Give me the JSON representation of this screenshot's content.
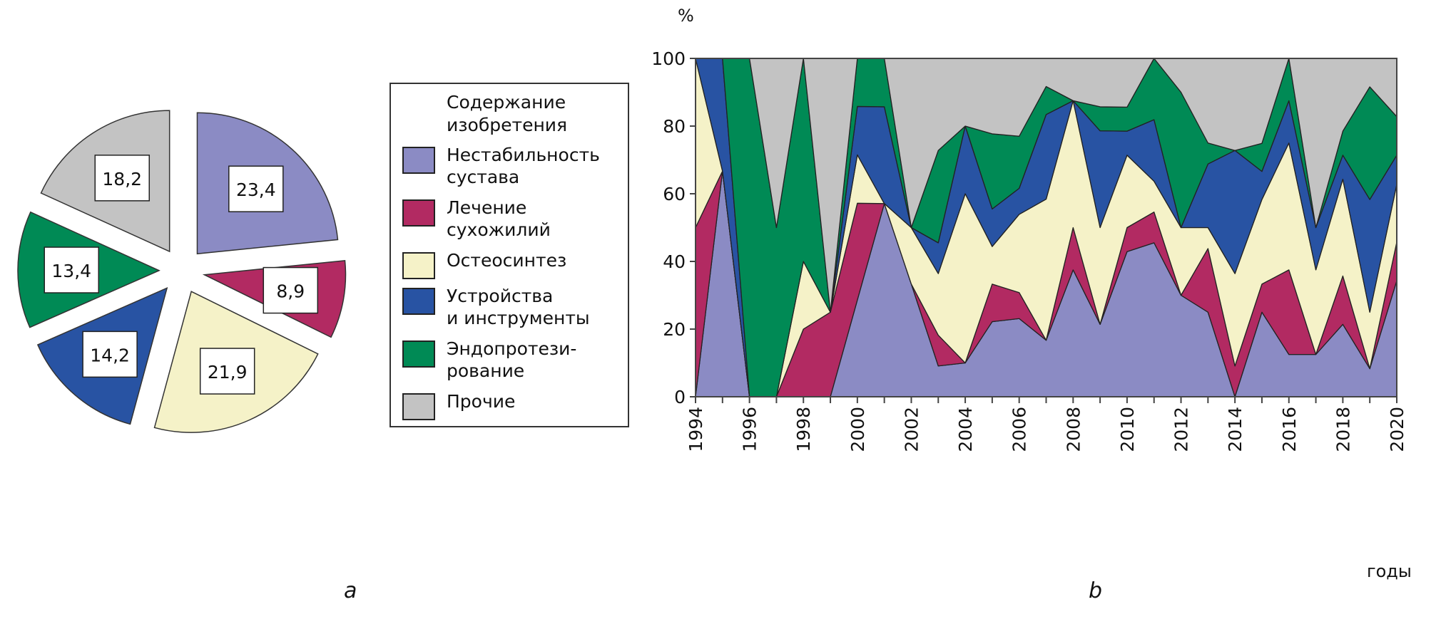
{
  "categories": [
    {
      "label": "Нестабильность\nсустава",
      "color": "#8b8bc4"
    },
    {
      "label": "Лечение\nсухожилий",
      "color": "#b22a62"
    },
    {
      "label": "Остеосинтез",
      "color": "#f5f2c8"
    },
    {
      "label": "Устройства\nи инструменты",
      "color": "#2853a3"
    },
    {
      "label": "Эндопротези-\nрование",
      "color": "#008a55"
    },
    {
      "label": "Прочие",
      "color": "#c3c3c3"
    }
  ],
  "legend_title": "Содержание\nизобретения",
  "panel_a_label": "a",
  "panel_b_label": "b",
  "chart_data": [
    {
      "type": "pie",
      "title": "",
      "labels": [
        "Нестабильность сустава",
        "Лечение сухожилий",
        "Остеосинтез",
        "Устройства и инструменты",
        "Эндопротезирование",
        "Прочие"
      ],
      "values": [
        23.4,
        8.9,
        21.9,
        14.2,
        13.4,
        18.2
      ],
      "value_labels": [
        "23,4",
        "8,9",
        "21,9",
        "14,2",
        "13,4",
        "18,2"
      ],
      "exploded": true,
      "legend": "right"
    },
    {
      "type": "area",
      "stacked": true,
      "ylabel": "%",
      "xlabel": "годы",
      "ylim": [
        0,
        100
      ],
      "yticks": [
        "0",
        "20",
        "40",
        "60",
        "80",
        "100"
      ],
      "xticks": [
        "1994",
        "1996",
        "1998",
        "2000",
        "2002",
        "2004",
        "2006",
        "2008",
        "2010",
        "2012",
        "2014",
        "2016",
        "2018",
        "2020"
      ],
      "x": [
        1994,
        1995,
        1996,
        1997,
        1998,
        1999,
        2000,
        2001,
        2002,
        2003,
        2004,
        2005,
        2006,
        2007,
        2008,
        2009,
        2010,
        2011,
        2012,
        2013,
        2014,
        2015,
        2016,
        2017,
        2018,
        2019,
        2020
      ],
      "series": [
        {
          "name": "Нестабильность сустава",
          "values": [
            0,
            66.7,
            0,
            0,
            0,
            0,
            28.6,
            57.1,
            33.3,
            9.1,
            10,
            22.2,
            23.1,
            16.7,
            37.5,
            21.4,
            42.9,
            45.5,
            30,
            25,
            0,
            25,
            12.5,
            12.5,
            21.4,
            8.3,
            34.3
          ]
        },
        {
          "name": "Лечение сухожилий",
          "values": [
            50,
            0,
            0,
            0,
            20,
            25,
            28.6,
            0,
            0,
            9.1,
            0,
            11.1,
            7.7,
            0,
            12.5,
            0,
            7.1,
            9.1,
            0,
            18.8,
            9.1,
            8.3,
            25,
            0,
            14.3,
            0,
            11.4
          ]
        },
        {
          "name": "Остеосинтез",
          "values": [
            50,
            0,
            0,
            0,
            20,
            0,
            14.3,
            0,
            16.7,
            18.2,
            50,
            11.1,
            23.1,
            41.7,
            37.5,
            28.6,
            21.4,
            9.1,
            20,
            6.2,
            27.3,
            25,
            37.5,
            25,
            28.6,
            16.7,
            17.1
          ]
        },
        {
          "name": "Устройства и инструменты",
          "values": [
            0,
            33.3,
            0,
            0,
            0,
            0,
            14.3,
            28.6,
            0,
            9.1,
            20,
            11.1,
            7.7,
            25,
            0,
            28.6,
            7.1,
            18.2,
            0,
            18.8,
            36.4,
            8.3,
            12.5,
            12.5,
            7.1,
            33.3,
            8.6
          ]
        },
        {
          "name": "Эндопротезирование",
          "values": [
            0,
            0,
            100,
            50,
            60,
            0,
            14.3,
            14.3,
            0,
            27.3,
            0,
            22.2,
            15.4,
            8.3,
            0,
            7.1,
            7.1,
            18.2,
            40,
            6.2,
            0,
            8.3,
            12.5,
            0,
            7.1,
            33.3,
            11.4
          ]
        },
        {
          "name": "Прочие",
          "values": [
            0,
            0,
            0,
            50,
            0,
            75,
            0,
            0,
            50,
            27.2,
            20,
            22.3,
            23,
            8.3,
            12.5,
            14.3,
            14.4,
            0,
            10,
            25,
            27.2,
            25.1,
            0,
            50,
            21.5,
            8.4,
            17.2
          ]
        }
      ],
      "grid": false,
      "legend": "shared"
    }
  ]
}
